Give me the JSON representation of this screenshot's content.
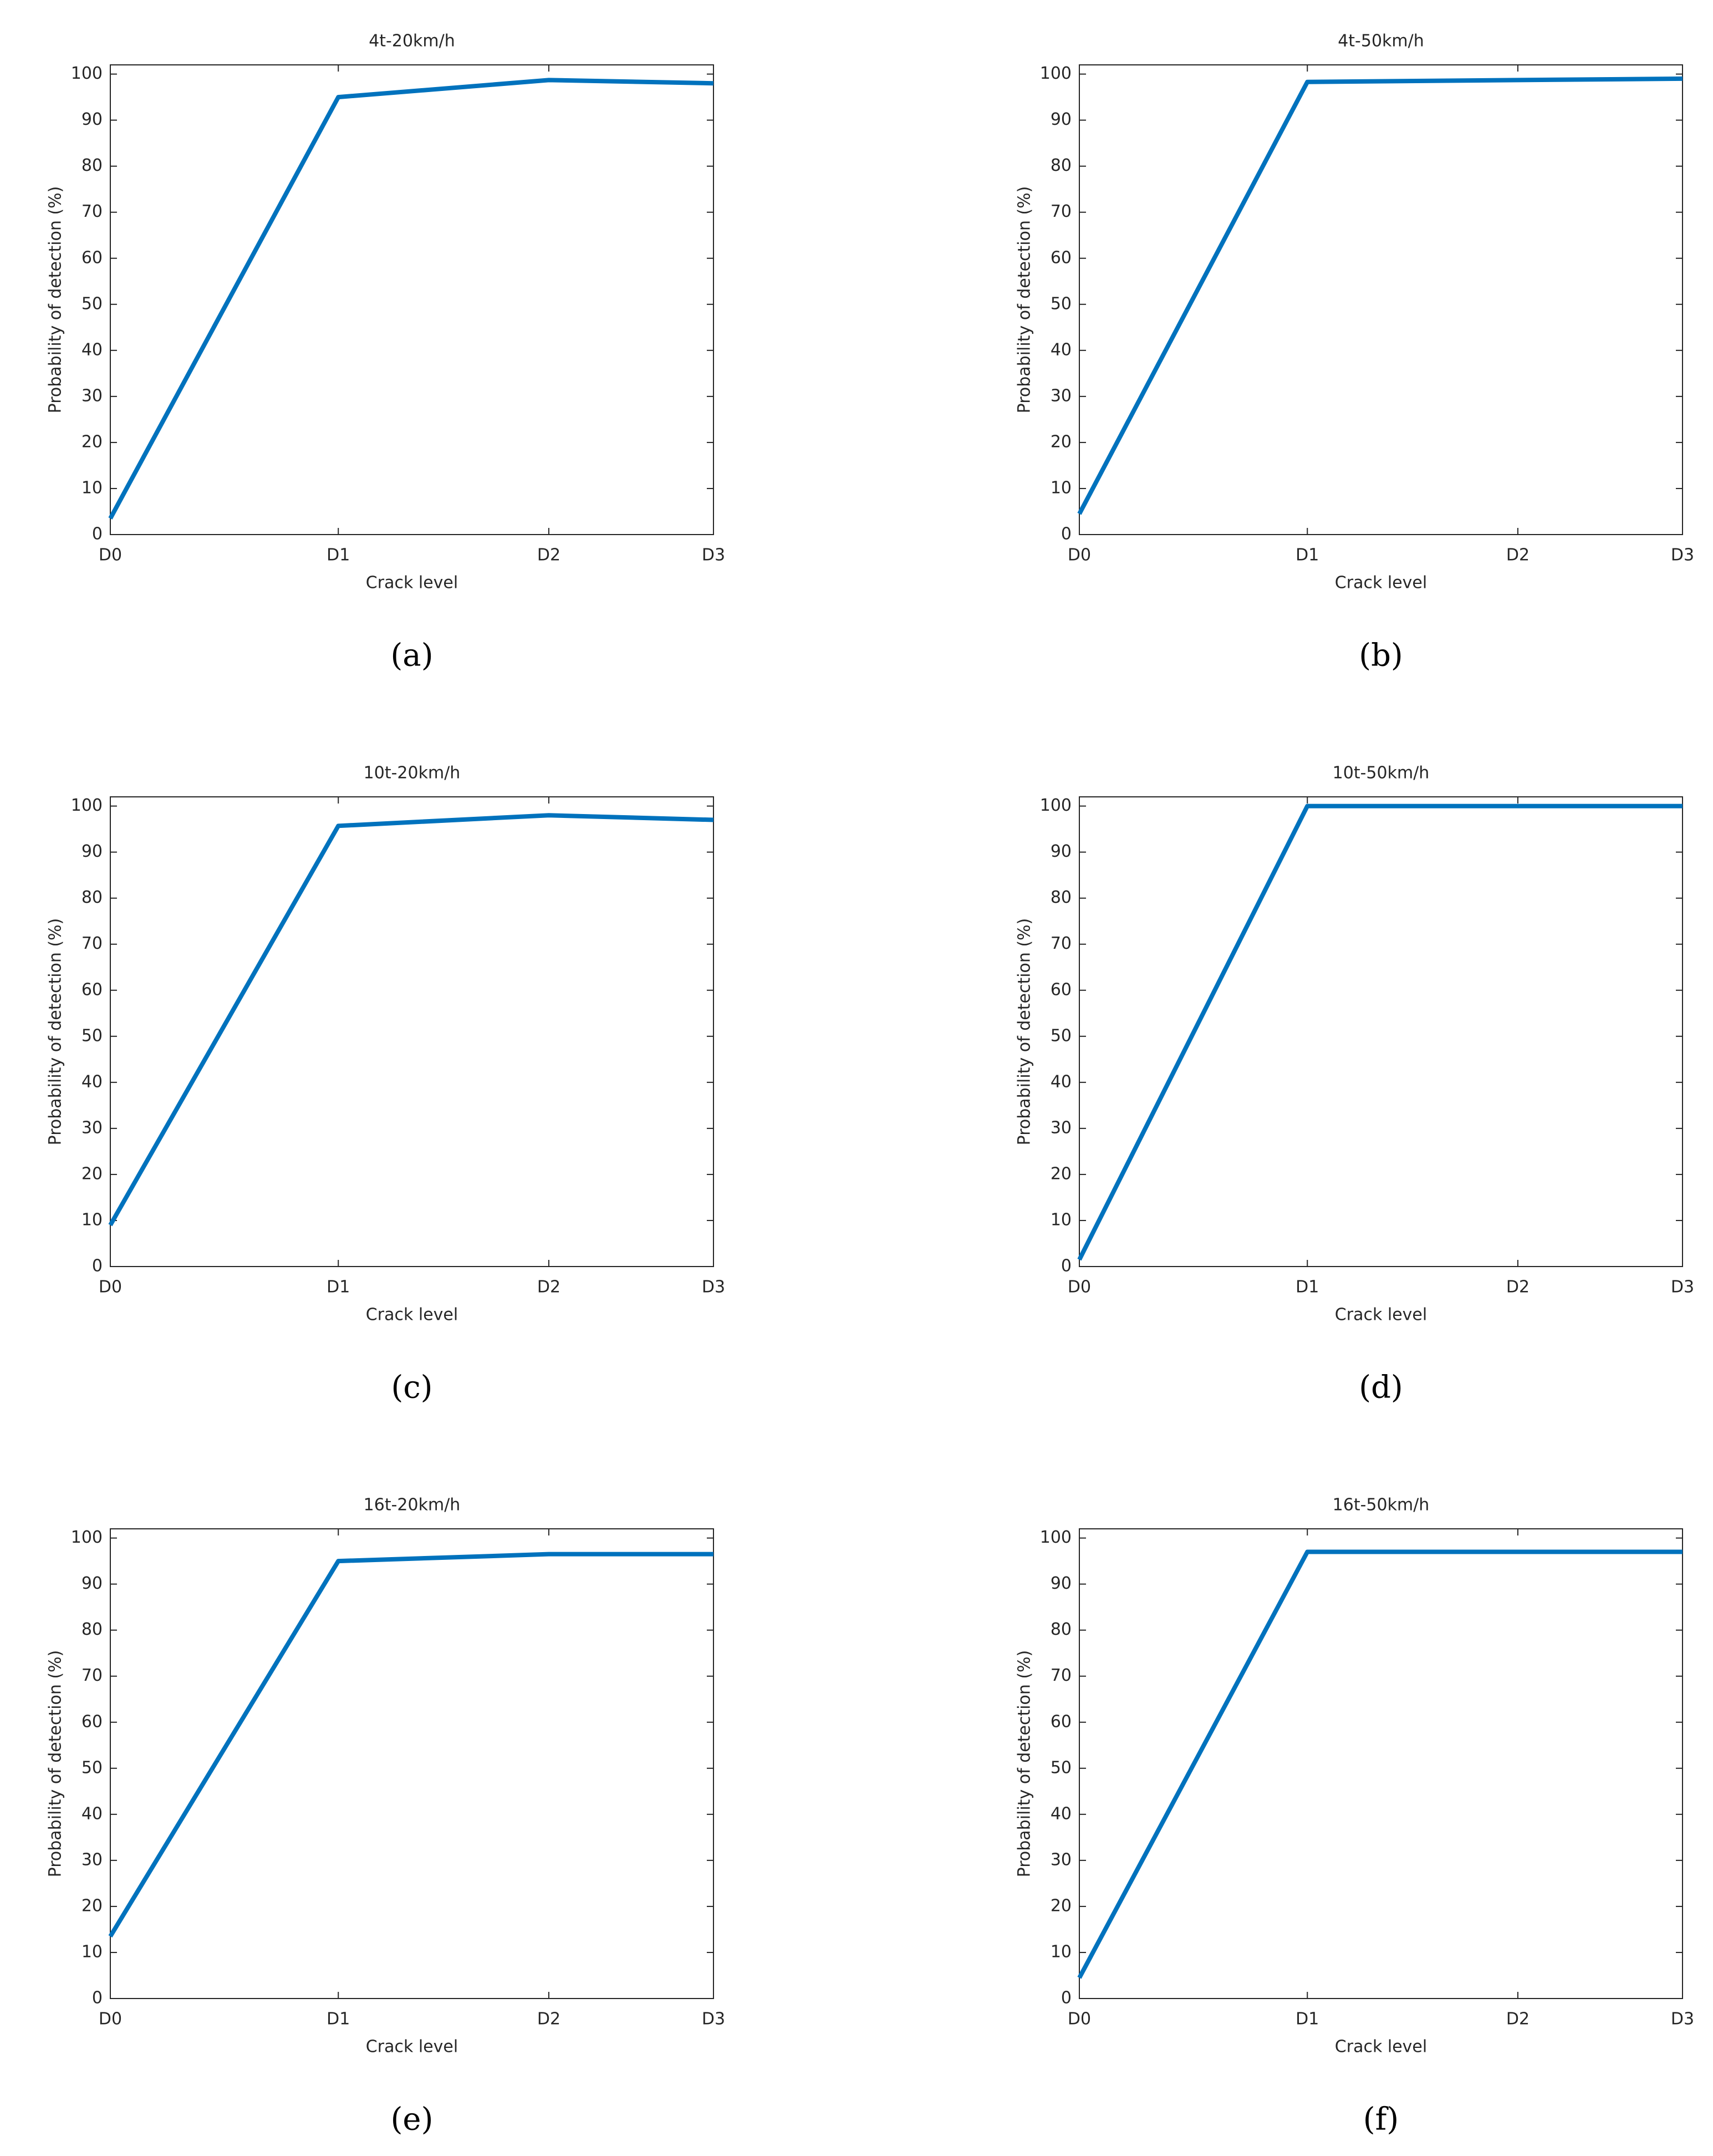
{
  "chart_data": [
    {
      "type": "line",
      "title": "4t-20km/h",
      "xlabel": "Crack level",
      "ylabel": "Probability of detection (%)",
      "panel_label": "(a)",
      "categories": [
        "D0",
        "D1",
        "D2",
        "D3"
      ],
      "series": [
        {
          "color": "#0072bd",
          "values": [
            3.5,
            95,
            98.7,
            98
          ]
        }
      ],
      "ylim": [
        0,
        102
      ],
      "yticks": [
        0,
        10,
        20,
        30,
        40,
        50,
        60,
        70,
        80,
        90,
        100
      ]
    },
    {
      "type": "line",
      "title": "4t-50km/h",
      "xlabel": "Crack level",
      "ylabel": "Probability of detection (%)",
      "panel_label": "(b)",
      "categories": [
        "D0",
        "D1",
        "D2",
        "D3"
      ],
      "series": [
        {
          "color": "#0072bd",
          "values": [
            4.5,
            98.3,
            98.7,
            99
          ]
        }
      ],
      "ylim": [
        0,
        102
      ],
      "yticks": [
        0,
        10,
        20,
        30,
        40,
        50,
        60,
        70,
        80,
        90,
        100
      ]
    },
    {
      "type": "line",
      "title": "10t-20km/h",
      "xlabel": "Crack level",
      "ylabel": "Probability of detection (%)",
      "panel_label": "(c)",
      "categories": [
        "D0",
        "D1",
        "D2",
        "D3"
      ],
      "series": [
        {
          "color": "#0072bd",
          "values": [
            9,
            95.7,
            98,
            97
          ]
        }
      ],
      "ylim": [
        0,
        102
      ],
      "yticks": [
        0,
        10,
        20,
        30,
        40,
        50,
        60,
        70,
        80,
        90,
        100
      ]
    },
    {
      "type": "line",
      "title": "10t-50km/h",
      "xlabel": "Crack level",
      "ylabel": "Probability of detection (%)",
      "panel_label": "(d)",
      "categories": [
        "D0",
        "D1",
        "D2",
        "D3"
      ],
      "series": [
        {
          "color": "#0072bd",
          "values": [
            1.5,
            100,
            100,
            100
          ]
        }
      ],
      "ylim": [
        0,
        102
      ],
      "yticks": [
        0,
        10,
        20,
        30,
        40,
        50,
        60,
        70,
        80,
        90,
        100
      ]
    },
    {
      "type": "line",
      "title": "16t-20km/h",
      "xlabel": "Crack level",
      "ylabel": "Probability of detection (%)",
      "panel_label": "(e)",
      "categories": [
        "D0",
        "D1",
        "D2",
        "D3"
      ],
      "series": [
        {
          "color": "#0072bd",
          "values": [
            13.5,
            95,
            96.5,
            96.5
          ]
        }
      ],
      "ylim": [
        0,
        102
      ],
      "yticks": [
        0,
        10,
        20,
        30,
        40,
        50,
        60,
        70,
        80,
        90,
        100
      ]
    },
    {
      "type": "line",
      "title": "16t-50km/h",
      "xlabel": "Crack level",
      "ylabel": "Probability of detection (%)",
      "panel_label": "(f)",
      "categories": [
        "D0",
        "D1",
        "D2",
        "D3"
      ],
      "series": [
        {
          "color": "#0072bd",
          "values": [
            4.5,
            97,
            97,
            97
          ]
        }
      ],
      "ylim": [
        0,
        102
      ],
      "yticks": [
        0,
        10,
        20,
        30,
        40,
        50,
        60,
        70,
        80,
        90,
        100
      ]
    }
  ]
}
